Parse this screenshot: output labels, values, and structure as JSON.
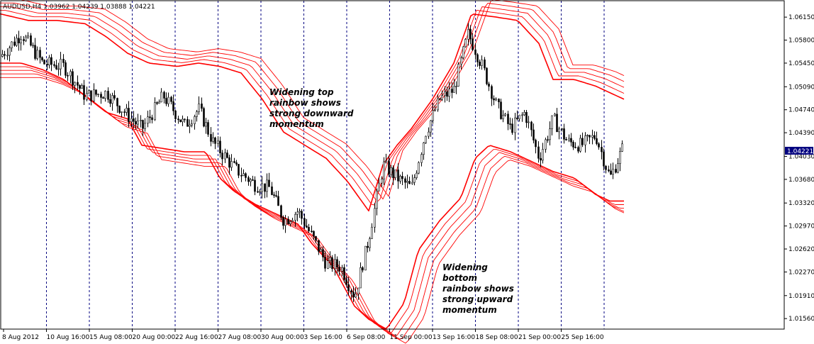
{
  "chart_data": {
    "type": "candlestick",
    "title": "AUDUSD,H4  1.03962 1.04239 1.03888 1.04221",
    "symbol": "AUDUSD,H4",
    "last_price": "1.04221",
    "y_range": [
      1.014,
      1.064
    ],
    "y_ticks": [
      "1.06150",
      "1.05800",
      "1.05450",
      "1.05090",
      "1.04740",
      "1.04390",
      "1.04030",
      "1.03680",
      "1.03320",
      "1.02970",
      "1.02620",
      "1.02270",
      "1.01910",
      "1.01560"
    ],
    "x_ticks": [
      "8 Aug 2012",
      "10 Aug 16:00",
      "15 Aug 08:00",
      "20 Aug 00:00",
      "22 Aug 16:00",
      "27 Aug 08:00",
      "30 Aug 00:00",
      "3 Sep 16:00",
      "6 Sep 08:00",
      "11 Sep 00:00",
      "13 Sep 16:00",
      "18 Sep 08:00",
      "21 Sep 00:00",
      "25 Sep 16:00"
    ],
    "grid": "vertical dashed",
    "close_path": [
      [
        0,
        1.0555
      ],
      [
        30,
        1.059
      ],
      [
        60,
        1.0545
      ],
      [
        90,
        1.054
      ],
      [
        120,
        1.0495
      ],
      [
        150,
        1.05
      ],
      [
        180,
        1.0465
      ],
      [
        200,
        1.0445
      ],
      [
        230,
        1.0495
      ],
      [
        260,
        1.045
      ],
      [
        280,
        1.0475
      ],
      [
        300,
        1.0425
      ],
      [
        330,
        1.0385
      ],
      [
        360,
        1.036
      ],
      [
        380,
        1.0355
      ],
      [
        400,
        1.0305
      ],
      [
        420,
        1.032
      ],
      [
        440,
        1.028
      ],
      [
        460,
        1.024
      ],
      [
        480,
        1.0235
      ],
      [
        500,
        1.019
      ],
      [
        520,
        1.028
      ],
      [
        540,
        1.039
      ],
      [
        560,
        1.037
      ],
      [
        580,
        1.0355
      ],
      [
        600,
        1.044
      ],
      [
        620,
        1.049
      ],
      [
        640,
        1.0505
      ],
      [
        660,
        1.059
      ],
      [
        680,
        1.054
      ],
      [
        700,
        1.048
      ],
      [
        720,
        1.0445
      ],
      [
        740,
        1.047
      ],
      [
        760,
        1.04
      ],
      [
        780,
        1.046
      ],
      [
        800,
        1.0425
      ],
      [
        820,
        1.042
      ],
      [
        840,
        1.0435
      ],
      [
        860,
        1.037
      ],
      [
        880,
        1.042
      ]
    ],
    "bands": {
      "color": "#ff0000",
      "lines": 5,
      "top_path": [
        [
          0,
          1.062
        ],
        [
          40,
          1.061
        ],
        [
          80,
          1.061
        ],
        [
          120,
          1.0605
        ],
        [
          150,
          1.0585
        ],
        [
          180,
          1.056
        ],
        [
          210,
          1.0545
        ],
        [
          250,
          1.054
        ],
        [
          280,
          1.0545
        ],
        [
          310,
          1.054
        ],
        [
          340,
          1.053
        ],
        [
          370,
          1.049
        ],
        [
          400,
          1.044
        ],
        [
          430,
          1.042
        ],
        [
          460,
          1.04
        ],
        [
          490,
          1.0365
        ],
        [
          520,
          1.032
        ],
        [
          540,
          1.039
        ],
        [
          560,
          1.042
        ],
        [
          580,
          1.0445
        ],
        [
          610,
          1.049
        ],
        [
          640,
          1.0545
        ],
        [
          665,
          1.062
        ],
        [
          700,
          1.0615
        ],
        [
          730,
          1.061
        ],
        [
          760,
          1.0575
        ],
        [
          780,
          1.052
        ],
        [
          810,
          1.052
        ],
        [
          840,
          1.051
        ],
        [
          880,
          1.049
        ]
      ],
      "bottom_path": [
        [
          0,
          1.0545
        ],
        [
          30,
          1.0545
        ],
        [
          60,
          1.0535
        ],
        [
          90,
          1.052
        ],
        [
          120,
          1.0495
        ],
        [
          150,
          1.047
        ],
        [
          180,
          1.046
        ],
        [
          200,
          1.042
        ],
        [
          230,
          1.0415
        ],
        [
          260,
          1.041
        ],
        [
          290,
          1.041
        ],
        [
          310,
          1.037
        ],
        [
          330,
          1.035
        ],
        [
          360,
          1.033
        ],
        [
          390,
          1.0315
        ],
        [
          420,
          1.03
        ],
        [
          440,
          1.027
        ],
        [
          470,
          1.0235
        ],
        [
          500,
          1.0175
        ],
        [
          520,
          1.0155
        ],
        [
          545,
          1.014
        ],
        [
          570,
          1.018
        ],
        [
          590,
          1.026
        ],
        [
          620,
          1.0305
        ],
        [
          650,
          1.034
        ],
        [
          670,
          1.04
        ],
        [
          690,
          1.042
        ],
        [
          720,
          1.041
        ],
        [
          750,
          1.0395
        ],
        [
          780,
          1.038
        ],
        [
          810,
          1.037
        ],
        [
          840,
          1.0345
        ],
        [
          860,
          1.0335
        ],
        [
          880,
          1.0335
        ]
      ]
    },
    "annotations": [
      {
        "lines": [
          "Widening top",
          "rainbow shows",
          "strong downward",
          "momentum"
        ]
      },
      {
        "lines": [
          "Widening",
          "bottom",
          "rainbow shows",
          "strong upward",
          "momentum"
        ]
      }
    ]
  }
}
